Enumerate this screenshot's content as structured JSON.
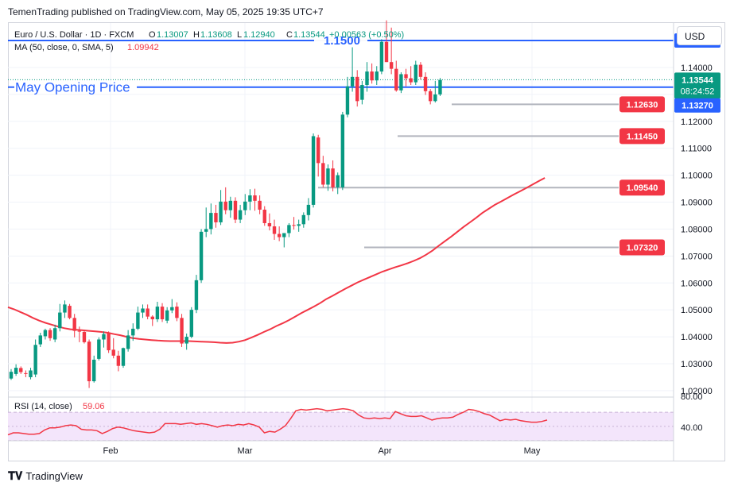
{
  "header": {
    "published": "TemenTrading published on TradingView.com, May 05, 2025 19:35 UTC+7"
  },
  "legend": {
    "symbol": "Euro / U.S. Dollar · 1D · FXCM",
    "o_lbl": "O",
    "o_val": "1.13007",
    "h_lbl": "H",
    "h_val": "1.13608",
    "l_lbl": "L",
    "l_val": "1.12940",
    "c_lbl": "C",
    "c_val": "1.13544",
    "change": "+0.00563 (+0.50%)",
    "ma_label": "MA (50, close, 0, SMA, 5)",
    "ma_value": "1.09942"
  },
  "unit_button": "USD",
  "footer": {
    "brand": "TradingView"
  },
  "colors": {
    "up": "#089981",
    "down": "#f23645",
    "ma": "#f23645",
    "blue": "#2962ff",
    "rsi": "#f23645",
    "rsi_band": "#f3e5fb"
  },
  "chart_data": {
    "type": "candlestick",
    "x_ticks": [
      "Feb",
      "Mar",
      "Apr",
      "May"
    ],
    "y_ticks": [
      "1.02000",
      "1.03000",
      "1.04000",
      "1.05000",
      "1.06000",
      "1.07000",
      "1.08000",
      "1.09000",
      "1.10000",
      "1.11000",
      "1.12000",
      "1.13000",
      "1.14000",
      "1.15000"
    ],
    "ylim": [
      1.0185,
      1.1565
    ],
    "price_labels": [
      {
        "id": "resistance",
        "text": "1.15000",
        "value": 1.15,
        "kind": "blue"
      },
      {
        "id": "last",
        "text": "1.13544",
        "value": 1.13544,
        "kind": "green"
      },
      {
        "id": "timer",
        "text": "08:24:52",
        "value": 1.1312,
        "kind": "green"
      },
      {
        "id": "opening",
        "text": "1.13270",
        "value": 1.1327,
        "kind": "blue"
      }
    ],
    "annotations": [
      {
        "text": "1.1500",
        "value": 1.15
      },
      {
        "text": "May Opening Price",
        "value": 1.1327
      }
    ],
    "levels": [
      {
        "text": "1.12630",
        "value": 1.1263
      },
      {
        "text": "1.11450",
        "value": 1.1145
      },
      {
        "text": "1.09540",
        "value": 1.0954
      },
      {
        "text": "1.07320",
        "value": 1.0732
      }
    ],
    "ohlc": [
      [
        1.0245,
        1.028,
        1.024,
        1.027
      ],
      [
        1.0262,
        1.0298,
        1.0255,
        1.0285
      ],
      [
        1.0284,
        1.029,
        1.0262,
        1.0269
      ],
      [
        1.0265,
        1.0275,
        1.025,
        1.0262
      ],
      [
        1.025,
        1.0285,
        1.0242,
        1.0275
      ],
      [
        1.026,
        1.039,
        1.025,
        1.037
      ],
      [
        1.0372,
        1.0415,
        1.0362,
        1.0405
      ],
      [
        1.0402,
        1.043,
        1.039,
        1.0425
      ],
      [
        1.0425,
        1.0432,
        1.0385,
        1.0395
      ],
      [
        1.039,
        1.0445,
        1.038,
        1.0432
      ],
      [
        1.0432,
        1.0522,
        1.042,
        1.049
      ],
      [
        1.049,
        1.0535,
        1.047,
        1.052
      ],
      [
        1.0515,
        1.0522,
        1.0465,
        1.047
      ],
      [
        1.047,
        1.0485,
        1.0398,
        1.0422
      ],
      [
        1.0422,
        1.0438,
        1.038,
        1.042
      ],
      [
        1.0418,
        1.0426,
        1.0375,
        1.038
      ],
      [
        1.0382,
        1.039,
        1.021,
        1.0235
      ],
      [
        1.0235,
        1.033,
        1.023,
        1.0315
      ],
      [
        1.0318,
        1.0398,
        1.0312,
        1.039
      ],
      [
        1.039,
        1.042,
        1.036,
        1.041
      ],
      [
        1.0415,
        1.042,
        1.034,
        1.035
      ],
      [
        1.0352,
        1.0395,
        1.032,
        1.033
      ],
      [
        1.033,
        1.0348,
        1.0272,
        1.0292
      ],
      [
        1.0292,
        1.036,
        1.0285,
        1.0358
      ],
      [
        1.0355,
        1.0425,
        1.0345,
        1.0405
      ],
      [
        1.0405,
        1.045,
        1.0385,
        1.043
      ],
      [
        1.043,
        1.0512,
        1.0425,
        1.049
      ],
      [
        1.049,
        1.052,
        1.047,
        1.0505
      ],
      [
        1.0505,
        1.052,
        1.0465,
        1.0475
      ],
      [
        1.0475,
        1.048,
        1.044,
        1.0465
      ],
      [
        1.0465,
        1.053,
        1.0455,
        1.0512
      ],
      [
        1.0512,
        1.0525,
        1.0455,
        1.0465
      ],
      [
        1.046,
        1.051,
        1.045,
        1.0498
      ],
      [
        1.0498,
        1.054,
        1.0488,
        1.051
      ],
      [
        1.0512,
        1.0528,
        1.0458,
        1.047
      ],
      [
        1.047,
        1.0485,
        1.0362,
        1.0375
      ],
      [
        1.0375,
        1.0412,
        1.0352,
        1.04
      ],
      [
        1.04,
        1.051,
        1.0395,
        1.05
      ],
      [
        1.05,
        1.063,
        1.0488,
        1.061
      ],
      [
        1.061,
        1.08,
        1.06,
        1.079
      ],
      [
        1.079,
        1.088,
        1.077,
        1.08
      ],
      [
        1.08,
        1.0895,
        1.078,
        1.086
      ],
      [
        1.086,
        1.089,
        1.0805,
        1.0825
      ],
      [
        1.0825,
        1.0945,
        1.0815,
        1.0902
      ],
      [
        1.0902,
        1.0955,
        1.0855,
        1.087
      ],
      [
        1.087,
        1.092,
        1.0842,
        1.0905
      ],
      [
        1.0905,
        1.0918,
        1.0822,
        1.0835
      ],
      [
        1.0835,
        1.089,
        1.0822,
        1.087
      ],
      [
        1.087,
        1.093,
        1.0852,
        1.0902
      ],
      [
        1.0902,
        1.0948,
        1.087,
        1.0925
      ],
      [
        1.0925,
        1.095,
        1.0868,
        1.0905
      ],
      [
        1.0905,
        1.0925,
        1.0855,
        1.0872
      ],
      [
        1.0872,
        1.0885,
        1.0812,
        1.0822
      ],
      [
        1.0822,
        1.0858,
        1.0795,
        1.081
      ],
      [
        1.081,
        1.0835,
        1.076,
        1.0782
      ],
      [
        1.0782,
        1.081,
        1.0755,
        1.077
      ],
      [
        1.077,
        1.0785,
        1.0732,
        1.0785
      ],
      [
        1.0785,
        1.0822,
        1.077,
        1.0815
      ],
      [
        1.0815,
        1.0845,
        1.0798,
        1.0812
      ],
      [
        1.0812,
        1.0835,
        1.079,
        1.0818
      ],
      [
        1.0818,
        1.0862,
        1.0805,
        1.0852
      ],
      [
        1.0852,
        1.0915,
        1.0832,
        1.089
      ],
      [
        1.089,
        1.1155,
        1.088,
        1.1145
      ],
      [
        1.114,
        1.115,
        1.0995,
        1.1045
      ],
      [
        1.1045,
        1.1072,
        1.0955,
        1.0965
      ],
      [
        1.0965,
        1.104,
        1.0942,
        1.1025
      ],
      [
        1.1025,
        1.1055,
        1.094,
        1.0955
      ],
      [
        1.0955,
        1.101,
        1.093,
        1.1
      ],
      [
        1.0955,
        1.1235,
        1.0945,
        1.1225
      ],
      [
        1.1225,
        1.1365,
        1.1215,
        1.133
      ],
      [
        1.133,
        1.1475,
        1.131,
        1.1365
      ],
      [
        1.1365,
        1.139,
        1.1255,
        1.1275
      ],
      [
        1.128,
        1.135,
        1.1263,
        1.1335
      ],
      [
        1.1335,
        1.142,
        1.131,
        1.1385
      ],
      [
        1.1385,
        1.1415,
        1.134,
        1.1352
      ],
      [
        1.1352,
        1.1405,
        1.1335,
        1.1385
      ],
      [
        1.1385,
        1.1505,
        1.1375,
        1.1495
      ],
      [
        1.1495,
        1.1575,
        1.142,
        1.142
      ],
      [
        1.142,
        1.1548,
        1.1375,
        1.1395
      ],
      [
        1.1395,
        1.1425,
        1.131,
        1.1315
      ],
      [
        1.1315,
        1.1382,
        1.1305,
        1.1375
      ],
      [
        1.1375,
        1.1395,
        1.133,
        1.136
      ],
      [
        1.136,
        1.1405,
        1.1335,
        1.1345
      ],
      [
        1.1345,
        1.1425,
        1.1335,
        1.141
      ],
      [
        1.141,
        1.142,
        1.1355,
        1.1365
      ],
      [
        1.1365,
        1.1382,
        1.1298,
        1.1312
      ],
      [
        1.1312,
        1.132,
        1.1263,
        1.1275
      ],
      [
        1.1275,
        1.135,
        1.127,
        1.13
      ],
      [
        1.13,
        1.1361,
        1.1294,
        1.1354
      ]
    ],
    "ma": [
      1.051,
      1.0502,
      1.0492,
      1.0482,
      1.047,
      1.046,
      1.0452,
      1.0445,
      1.0438,
      1.0432,
      1.0428,
      1.0426,
      1.0424,
      1.0422,
      1.042,
      1.0418,
      1.0415,
      1.041,
      1.0406,
      1.04,
      1.0395,
      1.0392,
      1.039,
      1.0388,
      1.0386,
      1.0385,
      1.0384,
      1.0384,
      1.0384,
      1.0384,
      1.0383,
      1.0382,
      1.0381,
      1.038,
      1.0378,
      1.0377,
      1.0378,
      1.0382,
      1.0388,
      1.0397,
      1.0407,
      1.0418,
      1.0428,
      1.044,
      1.045,
      1.0462,
      1.0475,
      1.0488,
      1.05,
      1.0512,
      1.0525,
      1.054,
      1.0552,
      1.0565,
      1.0578,
      1.059,
      1.0602,
      1.0612,
      1.0622,
      1.0632,
      1.0642,
      1.065,
      1.0658,
      1.0665,
      1.0673,
      1.0682,
      1.0692,
      1.0705,
      1.072,
      1.0738,
      1.0755,
      1.0772,
      1.079,
      1.0808,
      1.0825,
      1.0842,
      1.086,
      1.0875,
      1.089,
      1.0902,
      1.0915,
      1.0928,
      1.094,
      1.0952,
      1.0965,
      1.0978,
      1.099
    ],
    "rsi": {
      "label": "RSI (14, close)",
      "value": "59.06",
      "y_ticks": [
        "80.00",
        "40.00"
      ],
      "ylim": [
        32,
        88
      ],
      "band": [
        30,
        70
      ],
      "values": [
        38,
        41,
        41,
        40,
        39,
        39,
        40,
        45,
        48,
        48,
        49,
        51,
        52,
        51,
        46,
        45,
        45,
        44,
        40,
        43,
        47,
        49,
        48,
        46,
        44,
        43,
        42,
        41,
        42,
        46,
        54,
        54,
        54,
        53,
        54,
        55,
        53,
        54,
        53,
        51,
        49,
        51,
        52,
        51,
        53,
        52,
        54,
        52,
        49,
        41,
        43,
        42,
        46,
        51,
        61,
        72,
        74,
        73,
        74,
        75,
        74,
        72,
        73,
        74,
        75,
        74,
        72,
        66,
        62,
        61,
        62,
        61,
        62,
        61,
        71,
        68,
        65,
        64,
        64,
        65,
        62,
        59,
        61,
        62,
        62,
        63,
        67,
        70,
        74,
        73,
        71,
        68,
        66,
        62,
        58,
        60,
        59,
        60,
        58,
        57,
        56,
        56,
        57,
        59
      ]
    }
  }
}
